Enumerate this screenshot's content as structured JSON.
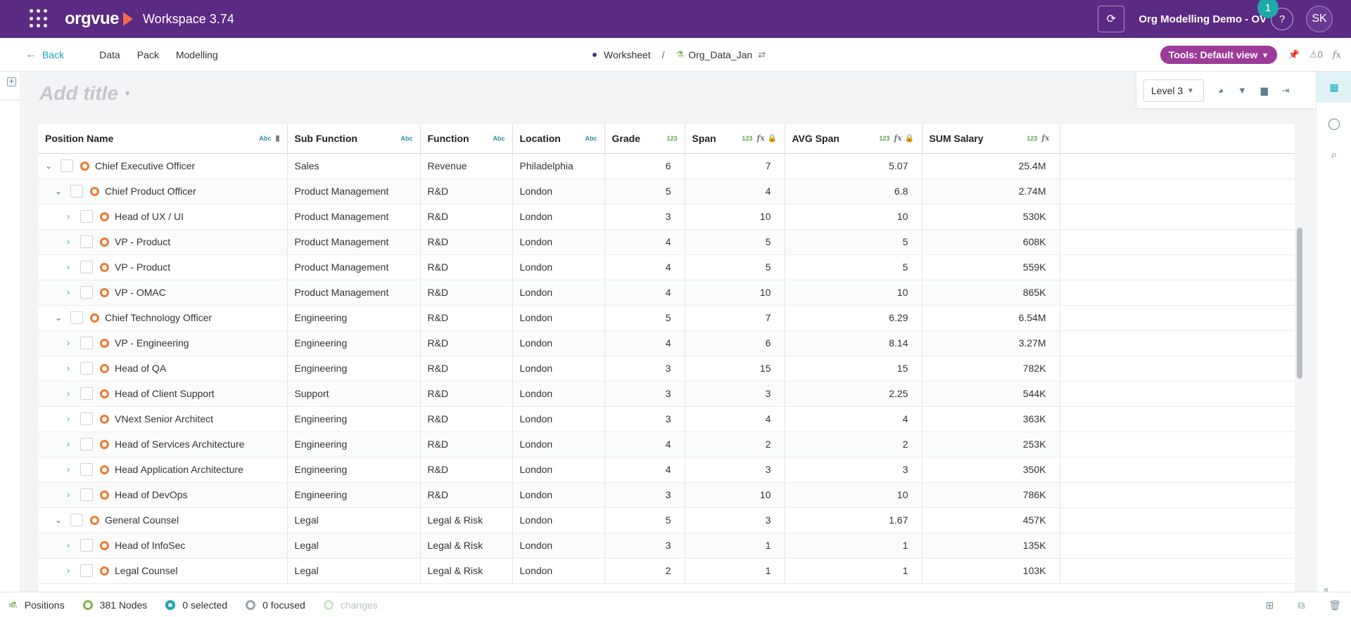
{
  "topbar": {
    "brand": "orgvue",
    "workspace": "Workspace 3.74",
    "project": "Org Modelling Demo - OV",
    "help": "?",
    "notification_count": "1",
    "avatar": "SK"
  },
  "nav": {
    "back": "Back",
    "items": [
      "Data",
      "Pack",
      "Modelling"
    ],
    "crumb_worksheet": "Worksheet",
    "crumb_sep": "/",
    "crumb_dataset": "Org_Data_Jan",
    "tools": "Tools: Default view",
    "warnings": "0"
  },
  "content": {
    "title_placeholder": "Add title",
    "level": "Level 3"
  },
  "table": {
    "columns": [
      {
        "label": "Position Name",
        "type": "Abc"
      },
      {
        "label": "Sub Function",
        "type": "Abc"
      },
      {
        "label": "Function",
        "type": "Abc"
      },
      {
        "label": "Location",
        "type": "Abc"
      },
      {
        "label": "Grade",
        "type": "123"
      },
      {
        "label": "Span",
        "type": "123"
      },
      {
        "label": "AVG Span",
        "type": "123"
      },
      {
        "label": "SUM Salary",
        "type": "123"
      }
    ],
    "rows": [
      {
        "name": "Chief Executive Officer",
        "level": 0,
        "expanded": true,
        "sub": "Sales",
        "func": "Revenue",
        "loc": "Philadelphia",
        "grade": "6",
        "span": "7",
        "avg": "5.07",
        "sal": "25.4M"
      },
      {
        "name": "Chief Product Officer",
        "level": 1,
        "expanded": true,
        "sub": "Product Management",
        "func": "R&D",
        "loc": "London",
        "grade": "5",
        "span": "4",
        "avg": "6.8",
        "sal": "2.74M"
      },
      {
        "name": "Head of UX / UI",
        "level": 2,
        "expanded": false,
        "sub": "Product Management",
        "func": "R&D",
        "loc": "London",
        "grade": "3",
        "span": "10",
        "avg": "10",
        "sal": "530K"
      },
      {
        "name": "VP - Product",
        "level": 2,
        "expanded": false,
        "sub": "Product Management",
        "func": "R&D",
        "loc": "London",
        "grade": "4",
        "span": "5",
        "avg": "5",
        "sal": "608K"
      },
      {
        "name": "VP - Product",
        "level": 2,
        "expanded": false,
        "sub": "Product Management",
        "func": "R&D",
        "loc": "London",
        "grade": "4",
        "span": "5",
        "avg": "5",
        "sal": "559K"
      },
      {
        "name": "VP - OMAC",
        "level": 2,
        "expanded": false,
        "sub": "Product Management",
        "func": "R&D",
        "loc": "London",
        "grade": "4",
        "span": "10",
        "avg": "10",
        "sal": "865K"
      },
      {
        "name": "Chief Technology Officer",
        "level": 1,
        "expanded": true,
        "sub": "Engineering",
        "func": "R&D",
        "loc": "London",
        "grade": "5",
        "span": "7",
        "avg": "6.29",
        "sal": "6.54M"
      },
      {
        "name": "VP - Engineering",
        "level": 2,
        "expanded": false,
        "sub": "Engineering",
        "func": "R&D",
        "loc": "London",
        "grade": "4",
        "span": "6",
        "avg": "8.14",
        "sal": "3.27M"
      },
      {
        "name": "Head of QA",
        "level": 2,
        "expanded": false,
        "sub": "Engineering",
        "func": "R&D",
        "loc": "London",
        "grade": "3",
        "span": "15",
        "avg": "15",
        "sal": "782K"
      },
      {
        "name": "Head of Client Support",
        "level": 2,
        "expanded": false,
        "sub": "Support",
        "func": "R&D",
        "loc": "London",
        "grade": "3",
        "span": "3",
        "avg": "2.25",
        "sal": "544K"
      },
      {
        "name": "VNext Senior Architect",
        "level": 2,
        "expanded": false,
        "sub": "Engineering",
        "func": "R&D",
        "loc": "London",
        "grade": "3",
        "span": "4",
        "avg": "4",
        "sal": "363K"
      },
      {
        "name": "Head of Services Architecture",
        "level": 2,
        "expanded": false,
        "sub": "Engineering",
        "func": "R&D",
        "loc": "London",
        "grade": "4",
        "span": "2",
        "avg": "2",
        "sal": "253K"
      },
      {
        "name": "Head Application Architecture",
        "level": 2,
        "expanded": false,
        "sub": "Engineering",
        "func": "R&D",
        "loc": "London",
        "grade": "4",
        "span": "3",
        "avg": "3",
        "sal": "350K"
      },
      {
        "name": "Head of DevOps",
        "level": 2,
        "expanded": false,
        "sub": "Engineering",
        "func": "R&D",
        "loc": "London",
        "grade": "3",
        "span": "10",
        "avg": "10",
        "sal": "786K"
      },
      {
        "name": "General Counsel",
        "level": 1,
        "expanded": true,
        "sub": "Legal",
        "func": "Legal & Risk",
        "loc": "London",
        "grade": "5",
        "span": "3",
        "avg": "1.67",
        "sal": "457K"
      },
      {
        "name": "Head of InfoSec",
        "level": 2,
        "expanded": false,
        "sub": "Legal",
        "func": "Legal & Risk",
        "loc": "London",
        "grade": "3",
        "span": "1",
        "avg": "1",
        "sal": "135K"
      },
      {
        "name": "Legal Counsel",
        "level": 2,
        "expanded": false,
        "sub": "Legal",
        "func": "Legal & Risk",
        "loc": "London",
        "grade": "2",
        "span": "1",
        "avg": "1",
        "sal": "103K"
      }
    ]
  },
  "status": {
    "dataset": "Positions",
    "nodes": "381 Nodes",
    "selected": "0 selected",
    "focused": "0 focused",
    "changes": "changes"
  },
  "colors": {
    "brand_purple": "#5b2a82",
    "tools_pill": "#9c3b9a",
    "accent_teal": "#1aa4b8",
    "node_orange": "#ee7a2e"
  }
}
